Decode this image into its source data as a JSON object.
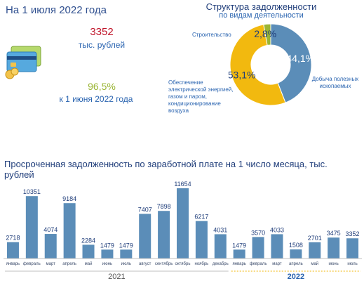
{
  "header": {
    "date_title": "На 1 июля 2022 года",
    "amount": "3352",
    "amount_unit": "тыс. рублей",
    "percent": "96,5%",
    "percent_note": "к 1 июня 2022 года"
  },
  "structure": {
    "title": "Структура задолженности",
    "subtitle": "по видам деятельности",
    "label_construction": "Строительство",
    "label_energy": "Обеспечение электрической энергией, газом и паром, кондиционирование воздуха",
    "label_mining": "Добыча полезных ископаемых"
  },
  "bar_section": {
    "title": "Просроченная задолженность по заработной плате на 1 число месяца, тыс. рублей"
  },
  "colors": {
    "bar": "#5b8db8",
    "slice_construction": "#5b8db8",
    "slice_mining": "#f2b90f",
    "slice_energy": "#9ab534",
    "year_line": "#f0b400"
  },
  "chart_data": [
    {
      "type": "pie",
      "title": "Структура задолженности",
      "subtitle": "по видам деятельности",
      "categories": [
        "Строительство",
        "Добыча полезных ископаемых",
        "Обеспечение электрической энергией, газом и паром, кондиционирование воздуха"
      ],
      "values": [
        44.1,
        53.1,
        2.8
      ],
      "labels": [
        "44,1%",
        "53,1%",
        "2,8%"
      ]
    },
    {
      "type": "bar",
      "title": "Просроченная задолженность по заработной плате на 1 число месяца, тыс. рублей",
      "categories": [
        "январь",
        "февраль",
        "март",
        "апрель",
        "май",
        "июнь",
        "июль",
        "август",
        "сентябрь",
        "октябрь",
        "ноябрь",
        "декабрь",
        "январь",
        "февраль",
        "март",
        "апрель",
        "май",
        "июнь",
        "июль"
      ],
      "values": [
        2718,
        10351,
        4074,
        9184,
        2284,
        1479,
        1479,
        7407,
        7898,
        11654,
        6217,
        4031,
        1479,
        3570,
        4033,
        1508,
        2701,
        3475,
        3352
      ],
      "groups": [
        {
          "name": "2021",
          "count": 12
        },
        {
          "name": "2022",
          "count": 7
        }
      ],
      "ylim": [
        0,
        11654
      ]
    }
  ]
}
